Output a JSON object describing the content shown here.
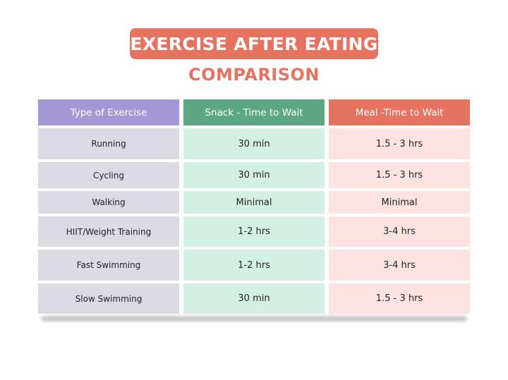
{
  "title": "EXERCISE AFTER EATING",
  "subtitle": "COMPARISON",
  "table": {
    "headers": [
      "Type of Exercise",
      "Snack - Time to Wait",
      "Meal -Time to Wait"
    ],
    "rows": [
      [
        "Running",
        "30 min",
        "1.5 - 3 hrs"
      ],
      [
        "Cycling",
        "30 min",
        "1.5 - 3 hrs"
      ],
      [
        "Walking",
        "Minimal",
        "Minimal"
      ],
      [
        "HIIT/Weight Training",
        "1-2 hrs",
        "3-4 hrs"
      ],
      [
        "Fast Swimming",
        "1-2 hrs",
        "3-4 hrs"
      ],
      [
        "Slow Swimming",
        "30 min",
        "1.5 - 3 hrs"
      ]
    ]
  },
  "colors": {
    "accent_coral": "#e5735f",
    "header_purple": "#a697d6",
    "header_green": "#5ca884",
    "col1_bg": "#dcdbe4",
    "col2_bg": "#d4efe3",
    "col3_bg": "#fde2e2"
  }
}
